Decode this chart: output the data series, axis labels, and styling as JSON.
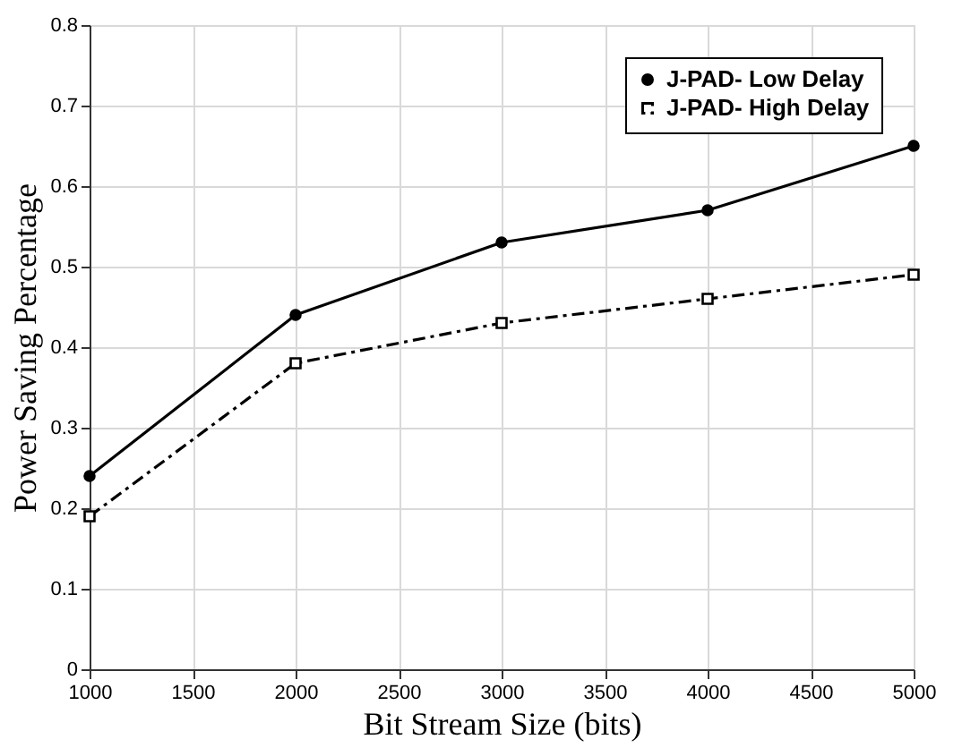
{
  "chart_data": {
    "type": "line",
    "xlabel": "Bit Stream Size (bits)",
    "ylabel": "Power Saving Percentage",
    "x": [
      1000,
      2000,
      3000,
      4000,
      5000
    ],
    "series": [
      {
        "name": "J-PAD- Low Delay",
        "color": "#000000",
        "marker": "circle",
        "line_style": "solid",
        "values": [
          0.24,
          0.44,
          0.53,
          0.57,
          0.65
        ]
      },
      {
        "name": "J-PAD- High Delay",
        "color": "#000000",
        "marker": "square",
        "line_style": "dashed",
        "values": [
          0.19,
          0.38,
          0.43,
          0.46,
          0.49
        ]
      }
    ],
    "xlim": [
      1000,
      5000
    ],
    "xticks": [
      1000,
      1500,
      2000,
      2500,
      3000,
      3500,
      4000,
      4500,
      5000
    ],
    "ylim": [
      0,
      0.8
    ],
    "yticks": [
      0,
      0.1,
      0.2,
      0.3,
      0.4,
      0.5,
      0.6,
      0.7,
      0.8
    ],
    "grid": true,
    "legend": "top right"
  }
}
